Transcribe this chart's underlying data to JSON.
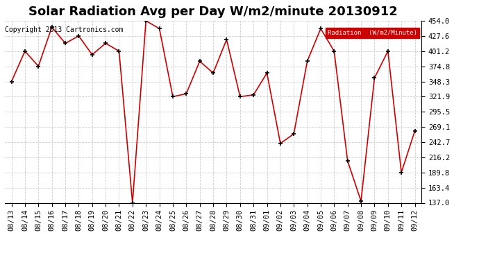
{
  "title": "Solar Radiation Avg per Day W/m2/minute 20130912",
  "copyright": "Copyright 2013 Cartronics.com",
  "legend_label": "Radiation  (W/m2/Minute)",
  "dates": [
    "08/13",
    "08/14",
    "08/15",
    "08/16",
    "08/17",
    "08/18",
    "08/19",
    "08/20",
    "08/21",
    "08/22",
    "08/23",
    "08/24",
    "08/25",
    "08/26",
    "08/27",
    "08/28",
    "08/29",
    "08/30",
    "08/31",
    "09/01",
    "09/02",
    "09/03",
    "09/04",
    "09/05",
    "09/06",
    "09/07",
    "09/08",
    "09/09",
    "09/10",
    "09/11",
    "09/12"
  ],
  "values": [
    348.3,
    401.2,
    374.8,
    443.0,
    414.8,
    427.6,
    395.0,
    414.8,
    401.2,
    137.0,
    454.0,
    440.4,
    321.9,
    327.0,
    383.6,
    363.0,
    421.4,
    321.9,
    325.0,
    363.0,
    240.5,
    257.0,
    383.6,
    440.4,
    401.2,
    210.0,
    140.0,
    354.5,
    401.2,
    189.8,
    262.0
  ],
  "line_color": "#cc0000",
  "marker_color": "#000000",
  "background_color": "#ffffff",
  "grid_color": "#cccccc",
  "plot_bg_color": "#ffffff",
  "legend_bg": "#cc0000",
  "legend_text_color": "#ffffff",
  "ylim": [
    137.0,
    454.0
  ],
  "yticks": [
    137.0,
    163.4,
    189.8,
    216.2,
    242.7,
    269.1,
    295.5,
    321.9,
    348.3,
    374.8,
    401.2,
    427.6,
    454.0
  ],
  "title_fontsize": 13,
  "copyright_fontsize": 7,
  "tick_fontsize": 7.5
}
